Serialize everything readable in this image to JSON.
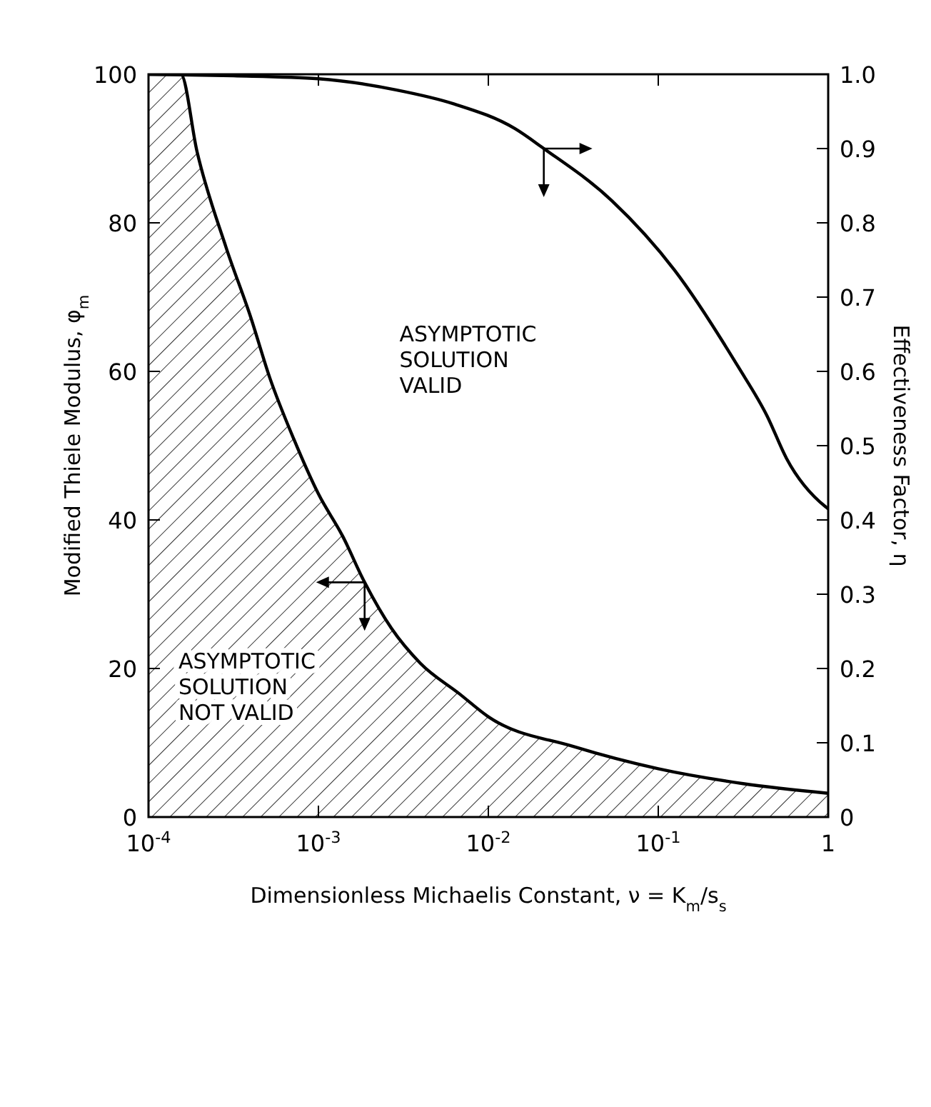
{
  "chart_data": {
    "type": "line",
    "xlabel": "Dimensionless Michaelis Constant, ν = K$_{m}$/s$_{s}$",
    "ylabel": "Modified Thiele Modulus, φ$_{m}$",
    "y2label": "Effectiveness Factor, η",
    "log": "x",
    "xlim": [
      0.0001,
      1
    ],
    "xticks": [
      {
        "value": 0.0001,
        "label": "10$^{-4}$"
      },
      {
        "value": 0.001,
        "label": "10$^{-3}$"
      },
      {
        "value": 0.01,
        "label": "10$^{-2}$"
      },
      {
        "value": 0.1,
        "label": "10$^{-1}$"
      },
      1
    ],
    "ylim": [
      0,
      100
    ],
    "yticks": [
      0,
      20,
      40,
      60,
      80,
      100
    ],
    "y2lim": [
      0,
      1
    ],
    "y2ticks": [
      0,
      0.1,
      0.2,
      0.3,
      0.4,
      0.5,
      0.6,
      0.7,
      0.8,
      0.9,
      {
        "value": 1,
        "label": "1.0"
      }
    ],
    "series": [
      {
        "type": "area",
        "color": "#000000",
        "x": [
          0.0001,
          0.000155,
          0.000193,
          0.000286,
          0.000398,
          0.000518,
          0.000719,
          0.001,
          0.00139,
          0.00187,
          0.00269,
          0.00398,
          0.00675,
          0.01,
          0.0316,
          0.1,
          0.316,
          1
        ],
        "values": [
          100,
          100,
          89.6,
          76.7,
          67.4,
          59.1,
          50.8,
          43.5,
          37.8,
          31.6,
          25.4,
          20.7,
          16.6,
          13.5,
          9.5,
          6.5,
          4.5,
          3.2
        ]
      },
      {
        "type": "line",
        "axis": "y2",
        "color": "#000000",
        "x": [
          0.0001,
          0.000316,
          0.001,
          0.00286,
          0.0063,
          0.0143,
          0.0212,
          0.0532,
          0.125,
          0.294,
          0.437,
          0.568,
          0.962,
          1
        ],
        "values": [
          1.0,
          0.998,
          0.994,
          0.979,
          0.96,
          0.927,
          0.9,
          0.83,
          0.736,
          0.607,
          0.54,
          0.483,
          0.418,
          0.415
        ]
      }
    ],
    "annotations": [
      "ASYMPTOTIC SOLUTION VALID",
      "ASYMPTOTIC SOLUTION NOT VALID"
    ]
  }
}
